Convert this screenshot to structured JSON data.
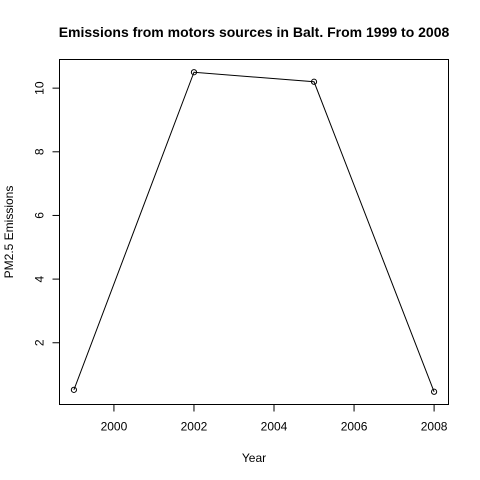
{
  "chart_data": {
    "type": "line",
    "title": "Emissions from motors sources in Balt. From 1999 to 2008",
    "xlabel": "Year",
    "ylabel": "PM2.5 Emissions",
    "x": [
      1999,
      2002,
      2005,
      2008
    ],
    "series": [
      {
        "values": [
          0.52,
          10.5,
          10.2,
          0.46
        ]
      }
    ],
    "xlim": [
      1998.64,
      2008.36
    ],
    "ylim": [
      0.06,
      10.9
    ],
    "x_ticks": [
      2000,
      2002,
      2004,
      2006,
      2008
    ],
    "y_ticks": [
      2,
      4,
      6,
      8,
      10
    ],
    "grid": false,
    "legend": "none",
    "line_color": "#000000",
    "marker": "open-circle"
  }
}
